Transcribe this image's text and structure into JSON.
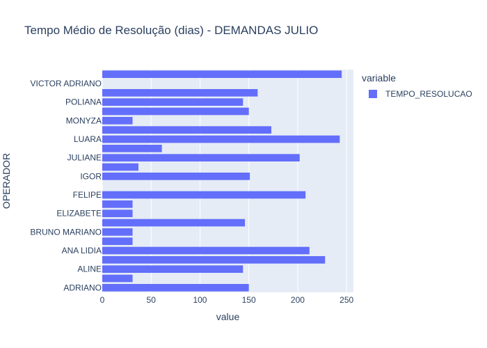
{
  "chart_data": {
    "type": "bar",
    "orientation": "horizontal",
    "title": "Tempo Médio de Resolução (dias) - DEMANDAS JULIO",
    "xlabel": "value",
    "ylabel": "OPERADOR",
    "xlim": [
      0,
      257
    ],
    "xticks": [
      "0",
      "50",
      "100",
      "150",
      "200",
      "250"
    ],
    "xtick_values": [
      0,
      50,
      100,
      150,
      200,
      250
    ],
    "grid": true,
    "legend_position": "top-right",
    "legend_title": "variable",
    "categories": [
      "ADRIANO",
      "",
      "ALINE",
      "",
      "ANA LIDIA",
      "",
      "BRUNO MARIANO",
      "",
      "ELIZABETE",
      "",
      "FELIPE",
      "",
      "IGOR",
      "",
      "JULIANE",
      "",
      "LUARA",
      "",
      "MONYZA",
      "",
      "POLIANA",
      "",
      "VICTOR ADRIANO",
      ""
    ],
    "series": [
      {
        "name": "TEMPO_RESOLUCAO",
        "color": "#636efa",
        "values": [
          150,
          31,
          144,
          228,
          212,
          31,
          31,
          146,
          31,
          31,
          208,
          0,
          151,
          37,
          202,
          61,
          243,
          173,
          31,
          150,
          144,
          159,
          0,
          245
        ]
      }
    ]
  },
  "colors": {
    "plot_background": "#e5ecf6",
    "bar": "#636efa",
    "gridline": "#ffffff",
    "text": "#2a3f5f"
  }
}
